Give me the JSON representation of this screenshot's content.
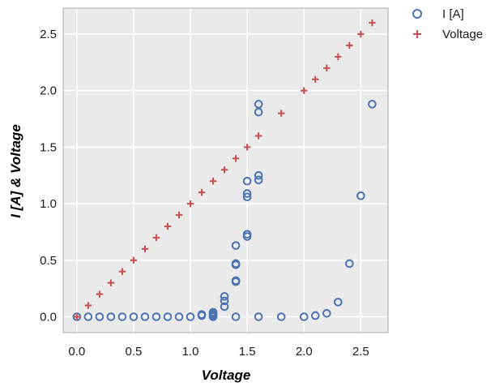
{
  "chart_data": {
    "type": "scatter",
    "title": "",
    "xlabel": "Voltage",
    "ylabel": "I [A] & Voltage",
    "xlim": [
      -0.12,
      2.74
    ],
    "ylim": [
      -0.14,
      2.73
    ],
    "xticks": [
      0.0,
      0.5,
      1.0,
      1.5,
      2.0,
      2.5
    ],
    "xtick_labels": [
      "0.0",
      "0.5",
      "1.0",
      "1.5",
      "2.0",
      "2.5"
    ],
    "yticks": [
      0.0,
      0.5,
      1.0,
      1.5,
      2.0,
      2.5
    ],
    "ytick_labels": [
      "0.0",
      "0.5",
      "1.0",
      "1.5",
      "2.0",
      "2.5"
    ],
    "grid": true,
    "legend_position": "outside-top-right",
    "series": [
      {
        "name": "I [A]",
        "marker": "open-circle",
        "color": "#4C72B0",
        "points": [
          [
            0.0,
            0.0
          ],
          [
            0.1,
            0.0
          ],
          [
            0.2,
            0.0
          ],
          [
            0.3,
            0.0
          ],
          [
            0.4,
            0.0
          ],
          [
            0.5,
            0.0
          ],
          [
            0.6,
            0.0
          ],
          [
            0.7,
            0.0
          ],
          [
            0.8,
            0.0
          ],
          [
            0.9,
            0.0
          ],
          [
            1.0,
            0.0
          ],
          [
            1.1,
            0.01
          ],
          [
            1.1,
            0.02
          ],
          [
            1.2,
            0.0
          ],
          [
            1.2,
            0.01
          ],
          [
            1.2,
            0.02
          ],
          [
            1.2,
            0.03
          ],
          [
            1.2,
            0.04
          ],
          [
            1.3,
            0.09
          ],
          [
            1.3,
            0.14
          ],
          [
            1.3,
            0.18
          ],
          [
            1.4,
            0.31
          ],
          [
            1.4,
            0.32
          ],
          [
            1.4,
            0.46
          ],
          [
            1.4,
            0.47
          ],
          [
            1.4,
            0.63
          ],
          [
            1.4,
            0.0
          ],
          [
            1.5,
            0.71
          ],
          [
            1.5,
            0.73
          ],
          [
            1.5,
            1.06
          ],
          [
            1.5,
            1.09
          ],
          [
            1.5,
            1.2
          ],
          [
            1.6,
            1.21
          ],
          [
            1.6,
            1.25
          ],
          [
            1.6,
            1.81
          ],
          [
            1.6,
            1.88
          ],
          [
            1.6,
            0.0
          ],
          [
            1.8,
            0.0
          ],
          [
            2.0,
            0.0
          ],
          [
            2.1,
            0.01
          ],
          [
            2.2,
            0.03
          ],
          [
            2.3,
            0.13
          ],
          [
            2.4,
            0.47
          ],
          [
            2.5,
            1.07
          ],
          [
            2.6,
            1.88
          ]
        ]
      },
      {
        "name": "Voltage",
        "marker": "plus",
        "color": "#C44E52",
        "points": [
          [
            0.0,
            0.0
          ],
          [
            0.1,
            0.1
          ],
          [
            0.2,
            0.2
          ],
          [
            0.3,
            0.3
          ],
          [
            0.4,
            0.4
          ],
          [
            0.5,
            0.5
          ],
          [
            0.6,
            0.6
          ],
          [
            0.7,
            0.7
          ],
          [
            0.8,
            0.8
          ],
          [
            0.9,
            0.9
          ],
          [
            1.0,
            1.0
          ],
          [
            1.1,
            1.1
          ],
          [
            1.2,
            1.2
          ],
          [
            1.3,
            1.3
          ],
          [
            1.4,
            1.4
          ],
          [
            1.5,
            1.5
          ],
          [
            1.6,
            1.6
          ],
          [
            1.8,
            1.8
          ],
          [
            2.0,
            2.0
          ],
          [
            2.1,
            2.1
          ],
          [
            2.2,
            2.2
          ],
          [
            2.3,
            2.3
          ],
          [
            2.4,
            2.4
          ],
          [
            2.5,
            2.5
          ],
          [
            2.6,
            2.6
          ]
        ]
      }
    ]
  },
  "colors": {
    "plot_background": "#EAEAEA",
    "grid": "#FFFFFF",
    "frame": "#AAAAAA"
  }
}
